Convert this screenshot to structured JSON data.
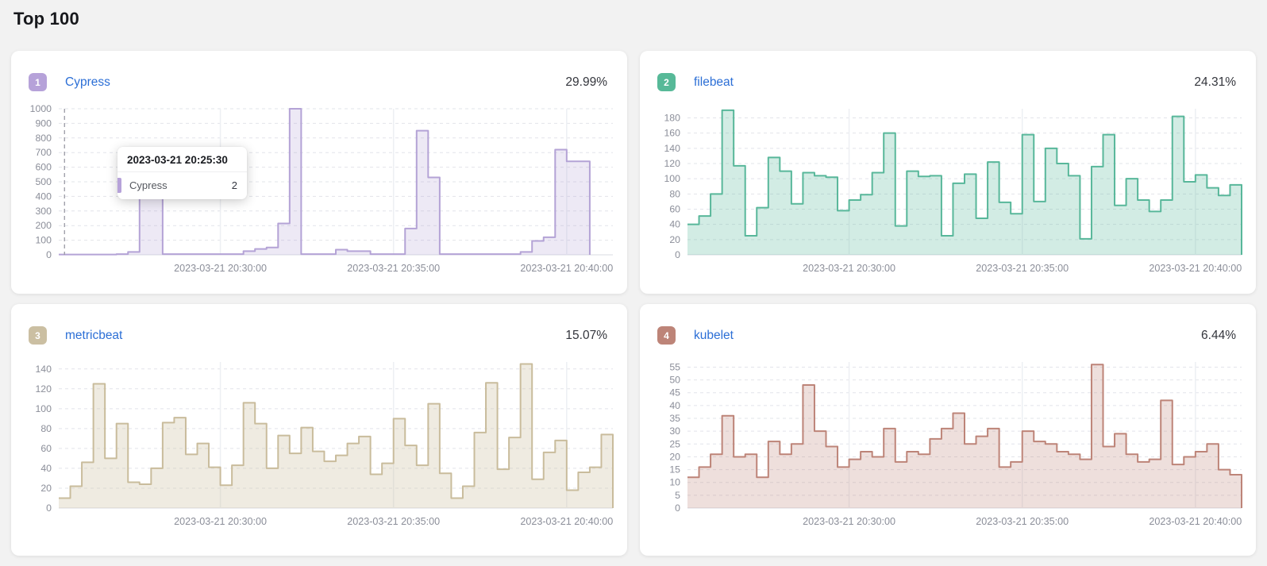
{
  "page": {
    "title": "Top 100"
  },
  "panels": [
    {
      "rank": "1",
      "name": "Cypress",
      "percent": "29.99%",
      "badge_color": "#b6a2d9",
      "link_color": "#2c6fd6"
    },
    {
      "rank": "2",
      "name": "filebeat",
      "percent": "24.31%",
      "badge_color": "#57b998",
      "link_color": "#2c6fd6"
    },
    {
      "rank": "3",
      "name": "metricbeat",
      "percent": "15.07%",
      "badge_color": "#cbbfa2",
      "link_color": "#2c6fd6"
    },
    {
      "rank": "4",
      "name": "kubelet",
      "percent": "6.44%",
      "badge_color": "#bd8478",
      "link_color": "#2c6fd6"
    }
  ],
  "tooltip": {
    "title": "2023-03-21 20:25:30",
    "series_label": "Cypress",
    "value": "2",
    "marker_color": "#b6a2d9"
  },
  "chart_data": [
    {
      "type": "area",
      "title": "Cypress",
      "x_start": "2023-03-21 20:25:20",
      "x_step_seconds": 20,
      "y_max": 1000,
      "y_ticks": [
        0,
        100,
        200,
        300,
        400,
        500,
        600,
        700,
        800,
        900,
        1000
      ],
      "x_ticks": [
        {
          "label": "2023-03-21 20:30:00",
          "index": 14
        },
        {
          "label": "2023-03-21 20:35:00",
          "index": 29
        },
        {
          "label": "2023-03-21 20:40:00",
          "index": 44
        }
      ],
      "crosshair_index": 0.5,
      "color": "#b4a3d6",
      "fill_opacity": 0.24,
      "values": [
        2,
        2,
        2,
        2,
        2,
        5,
        20,
        650,
        650,
        5,
        5,
        5,
        5,
        5,
        5,
        5,
        25,
        40,
        50,
        215,
        1000,
        5,
        5,
        5,
        35,
        25,
        25,
        5,
        5,
        5,
        180,
        850,
        530,
        5,
        5,
        5,
        5,
        5,
        5,
        5,
        20,
        95,
        120,
        720,
        640,
        640,
        null,
        null
      ]
    },
    {
      "type": "area",
      "title": "filebeat",
      "x_start": "2023-03-21 20:25:20",
      "x_step_seconds": 20,
      "y_max": 192,
      "y_ticks": [
        0,
        20,
        40,
        60,
        80,
        100,
        120,
        140,
        160,
        180
      ],
      "x_ticks": [
        {
          "label": "2023-03-21 20:30:00",
          "index": 14
        },
        {
          "label": "2023-03-21 20:35:00",
          "index": 29
        },
        {
          "label": "2023-03-21 20:40:00",
          "index": 44
        }
      ],
      "color": "#58b79a",
      "fill_opacity": 0.27,
      "values": [
        40,
        51,
        80,
        190,
        117,
        25,
        62,
        128,
        110,
        67,
        108,
        104,
        102,
        58,
        72,
        79,
        108,
        160,
        38,
        110,
        103,
        104,
        25,
        94,
        106,
        48,
        122,
        69,
        54,
        158,
        70,
        140,
        120,
        104,
        21,
        116,
        158,
        65,
        100,
        72,
        57,
        72,
        182,
        96,
        105,
        88,
        78,
        92
      ]
    },
    {
      "type": "area",
      "title": "metricbeat",
      "x_start": "2023-03-21 20:25:20",
      "x_step_seconds": 20,
      "y_max": 147,
      "y_ticks": [
        0,
        20,
        40,
        60,
        80,
        100,
        120,
        140
      ],
      "x_ticks": [
        {
          "label": "2023-03-21 20:30:00",
          "index": 14
        },
        {
          "label": "2023-03-21 20:35:00",
          "index": 29
        },
        {
          "label": "2023-03-21 20:40:00",
          "index": 44
        }
      ],
      "color": "#c9bc9c",
      "fill_opacity": 0.3,
      "values": [
        10,
        22,
        46,
        125,
        50,
        85,
        26,
        24,
        40,
        86,
        91,
        54,
        65,
        41,
        23,
        43,
        106,
        85,
        40,
        73,
        55,
        81,
        57,
        47,
        53,
        65,
        72,
        34,
        45,
        90,
        63,
        43,
        105,
        35,
        10,
        22,
        76,
        126,
        39,
        71,
        145,
        29,
        56,
        68,
        18,
        36,
        41,
        74
      ]
    },
    {
      "type": "area",
      "title": "kubelet",
      "x_start": "2023-03-21 20:25:20",
      "x_step_seconds": 20,
      "y_max": 57,
      "y_ticks": [
        0,
        5,
        10,
        15,
        20,
        25,
        30,
        35,
        40,
        45,
        50,
        55
      ],
      "x_ticks": [
        {
          "label": "2023-03-21 20:30:00",
          "index": 14
        },
        {
          "label": "2023-03-21 20:35:00",
          "index": 29
        },
        {
          "label": "2023-03-21 20:40:00",
          "index": 44
        }
      ],
      "color": "#bd8478",
      "fill_opacity": 0.26,
      "values": [
        12,
        16,
        21,
        36,
        20,
        21,
        12,
        26,
        21,
        25,
        48,
        30,
        24,
        16,
        19,
        22,
        20,
        31,
        18,
        22,
        21,
        27,
        31,
        37,
        25,
        28,
        31,
        16,
        18,
        30,
        26,
        25,
        22,
        21,
        19,
        56,
        24,
        29,
        21,
        18,
        19,
        42,
        17,
        20,
        22,
        25,
        15,
        13
      ]
    }
  ],
  "axis_style": {
    "label_color": "#8b8e99",
    "grid_color": "#e2e4ea",
    "baseline_color": "#d8dbe2",
    "vgrid_color": "#edeff3",
    "crosshair_color": "#9a9aa5"
  }
}
